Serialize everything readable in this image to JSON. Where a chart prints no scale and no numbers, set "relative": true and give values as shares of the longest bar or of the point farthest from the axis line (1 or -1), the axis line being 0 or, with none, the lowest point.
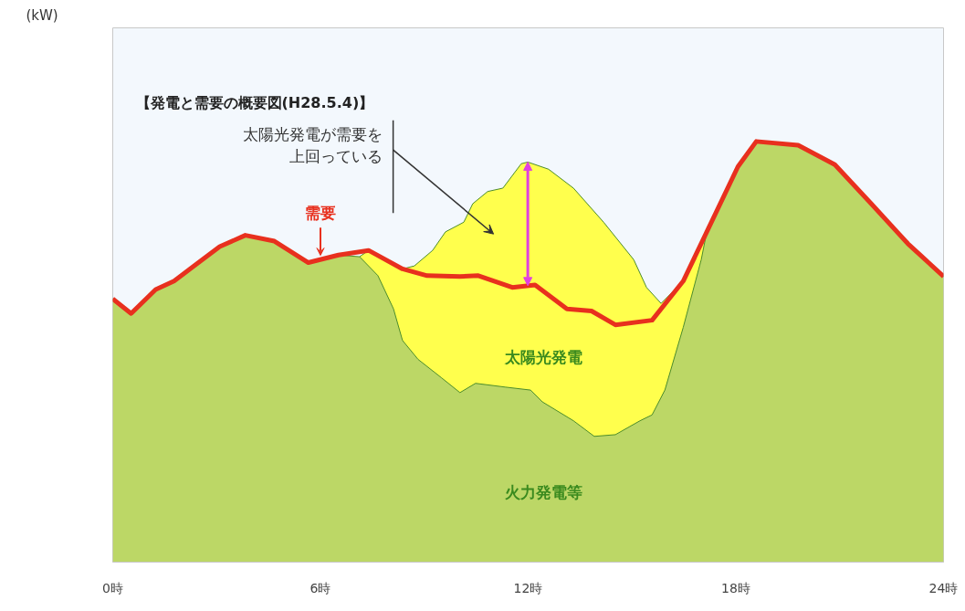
{
  "chart_data": {
    "type": "area",
    "relative": true,
    "title": "【発電と需要の概要図(H28.5.4)】",
    "legend": false,
    "grid": false,
    "xlim": [
      0,
      24
    ],
    "xticks": [
      {
        "value": 0,
        "label": "0時"
      },
      {
        "value": 6,
        "label": "6時"
      },
      {
        "value": 12,
        "label": "12時"
      },
      {
        "value": 18,
        "label": "18時"
      },
      {
        "value": 24,
        "label": "24時"
      }
    ],
    "series": [
      {
        "name": "太陽光発電",
        "color": "#ffff4d",
        "x": [
          7.13,
          7.39,
          8.37,
          8.71,
          9.24,
          9.61,
          10.14,
          10.4,
          10.83,
          11.27,
          11.8,
          11.99,
          12.59,
          13.31,
          14.18,
          15.05,
          15.42,
          15.84,
          16.48,
          17.16
        ],
        "values": [
          0.726,
          0.741,
          0.697,
          0.704,
          0.741,
          0.785,
          0.808,
          0.852,
          0.881,
          0.889,
          0.947,
          0.951,
          0.934,
          0.889,
          0.808,
          0.719,
          0.653,
          0.615,
          0.668,
          0.785
        ]
      },
      {
        "name": "火力発電等",
        "color": "#bcd766",
        "x": [
          0,
          0.53,
          1.24,
          1.77,
          2.38,
          3.09,
          3.83,
          4.67,
          5.65,
          6.52,
          7.13,
          7.66,
          8.11,
          8.37,
          8.82,
          9.5,
          10.03,
          10.48,
          11.35,
          12.07,
          12.41,
          13.31,
          13.91,
          14.52,
          15.23,
          15.58,
          15.95,
          16.48,
          17.0,
          17.16,
          18.06,
          18.59,
          19.8,
          20.86,
          21.91,
          22.97,
          24
        ],
        "values": [
          0.626,
          0.591,
          0.648,
          0.668,
          0.706,
          0.75,
          0.777,
          0.763,
          0.712,
          0.73,
          0.726,
          0.681,
          0.602,
          0.527,
          0.482,
          0.438,
          0.403,
          0.425,
          0.416,
          0.409,
          0.381,
          0.336,
          0.299,
          0.303,
          0.336,
          0.35,
          0.409,
          0.558,
          0.719,
          0.785,
          0.94,
          1.0,
          0.991,
          0.945,
          0.852,
          0.757,
          0.679
        ]
      },
      {
        "name": "需要",
        "type": "line",
        "color": "#e8301e",
        "x": [
          0,
          0.53,
          1.24,
          1.77,
          2.38,
          3.09,
          3.83,
          4.67,
          5.65,
          6.52,
          7.39,
          8.37,
          9.08,
          10.03,
          10.56,
          11.54,
          12.2,
          13.12,
          13.83,
          14.52,
          15.58,
          16.48,
          17.16,
          18.06,
          18.59,
          19.8,
          20.86,
          21.91,
          22.97,
          24
        ],
        "values": [
          0.626,
          0.591,
          0.648,
          0.668,
          0.706,
          0.75,
          0.777,
          0.763,
          0.712,
          0.73,
          0.741,
          0.697,
          0.681,
          0.679,
          0.681,
          0.653,
          0.659,
          0.602,
          0.597,
          0.564,
          0.575,
          0.668,
          0.785,
          0.94,
          1.0,
          0.991,
          0.945,
          0.852,
          0.757,
          0.679
        ]
      }
    ],
    "annotations": [
      "(kW)",
      "太陽光発電が需要を上回っている"
    ]
  }
}
